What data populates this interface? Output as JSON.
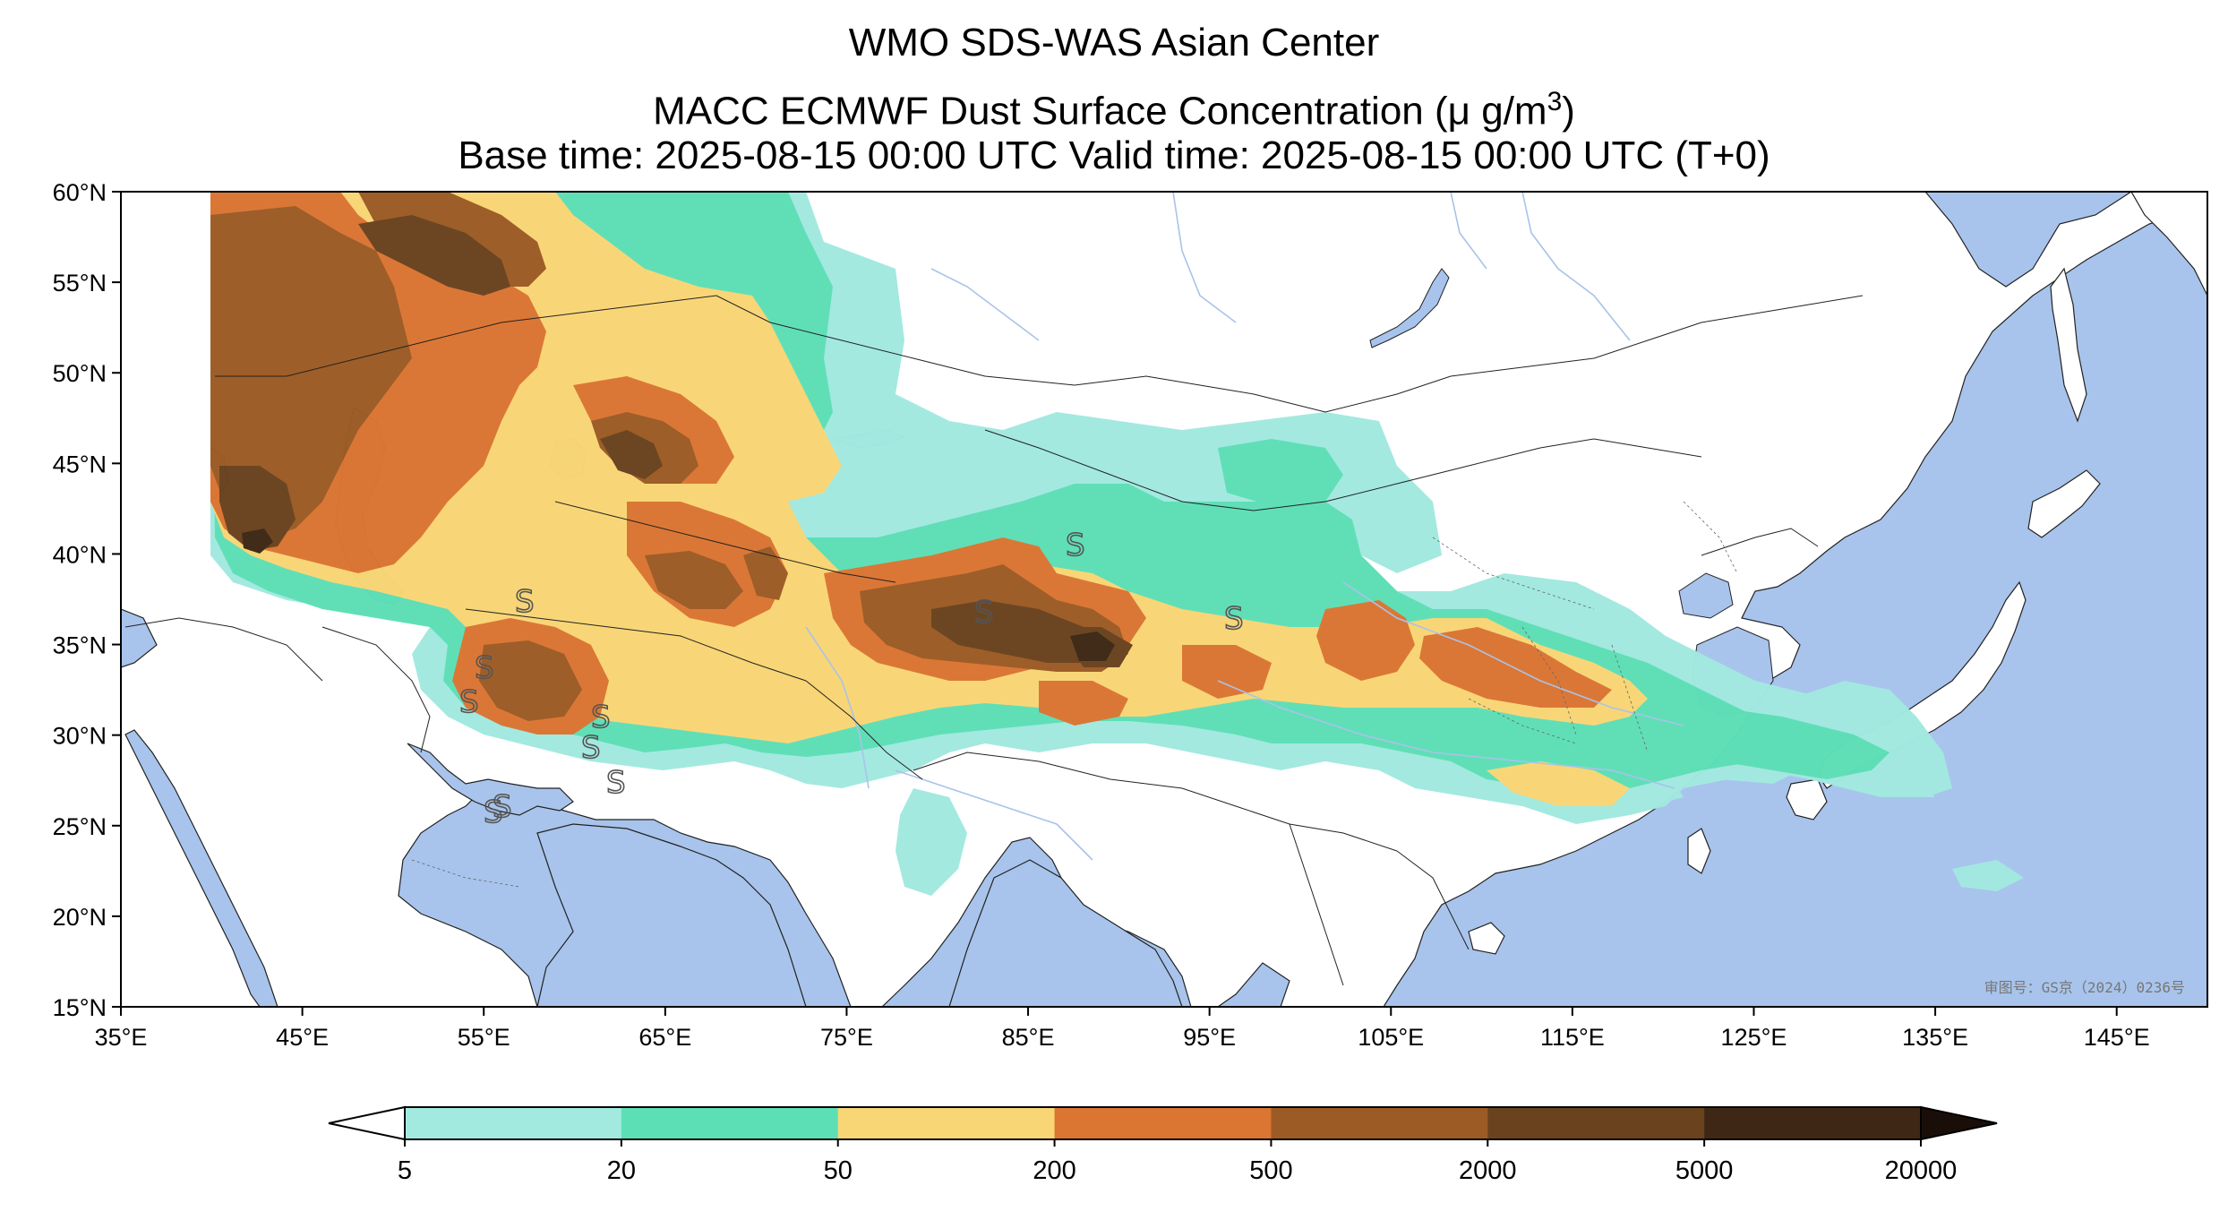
{
  "titles": {
    "line1": "WMO SDS-WAS Asian Center",
    "line2_main": "MACC ECMWF Dust Surface Concentration (",
    "line2_unit": "μ g/m",
    "line2_sup": "3",
    "line2_close": ")",
    "line3": "Base time: 2025-08-15 00:00 UTC Valid time: 2025-08-15 00:00 UTC (T+0)"
  },
  "map": {
    "lon_ticks": [
      "35°E",
      "45°E",
      "55°E",
      "65°E",
      "75°E",
      "85°E",
      "95°E",
      "105°E",
      "115°E",
      "125°E",
      "135°E",
      "145°E"
    ],
    "lat_ticks": [
      "60°N",
      "55°N",
      "50°N",
      "45°N",
      "40°N",
      "35°N",
      "30°N",
      "25°N",
      "20°N",
      "15°N"
    ],
    "extent": {
      "lon_min": 35,
      "lon_max": 150,
      "lat_min": 15,
      "lat_max": 60
    },
    "approval_text": "审图号：GS京（2024）0236号",
    "sandstorm_symbol": "S",
    "colors": {
      "ocean": "#a8c4ec",
      "land": "#ffffff",
      "rivers": "#a9c3e8",
      "borders": "#222222"
    }
  },
  "colorbar": {
    "levels": [
      "5",
      "20",
      "50",
      "200",
      "500",
      "2000",
      "5000",
      "20000"
    ],
    "colors": [
      "#a2e9e0",
      "#5ddfb6",
      "#f8d675",
      "#db7532",
      "#9c5b25",
      "#6a431e",
      "#3e2815"
    ],
    "under_color": "#ffffff",
    "over_color": "#1a0f08"
  }
}
